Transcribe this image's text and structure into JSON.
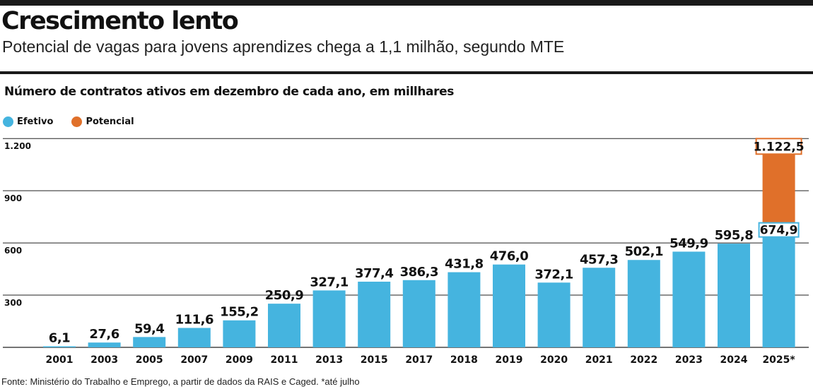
{
  "header": {
    "title": "Crescimento lento",
    "subtitle": "Potencial de vagas para jovens aprendizes chega a 1,1 milhão, segundo MTE"
  },
  "chart_heading": "Número de contratos ativos em dezembro de cada ano, em millhares",
  "legend": {
    "effective_label": "Efetivo",
    "potential_label": "Potencial"
  },
  "colors": {
    "effective": "#45b4df",
    "potential": "#e0702a",
    "grid": "#222222",
    "text": "#111111"
  },
  "chart_data": {
    "type": "bar",
    "categories": [
      "2001",
      "2003",
      "2005",
      "2007",
      "2009",
      "2011",
      "2013",
      "2015",
      "2017",
      "2018",
      "2019",
      "2020",
      "2021",
      "2022",
      "2023",
      "2024",
      "2025*"
    ],
    "series": [
      {
        "name": "Efetivo",
        "values": [
          6.1,
          27.6,
          59.4,
          111.6,
          155.2,
          250.9,
          327.1,
          377.4,
          386.3,
          431.8,
          476.0,
          372.1,
          457.3,
          502.1,
          549.9,
          595.8,
          674.9
        ],
        "labels": [
          "6,1",
          "27,6",
          "59,4",
          "111,6",
          "155,2",
          "250,9",
          "327,1",
          "377,4",
          "386,3",
          "431,8",
          "476,0",
          "372,1",
          "457,3",
          "502,1",
          "549,9",
          "595,8",
          "674,9"
        ]
      },
      {
        "name": "Potencial",
        "values": [
          null,
          null,
          null,
          null,
          null,
          null,
          null,
          null,
          null,
          null,
          null,
          null,
          null,
          null,
          null,
          null,
          1122.5
        ],
        "labels": [
          "",
          "",
          "",
          "",
          "",
          "",
          "",
          "",
          "",
          "",
          "",
          "",
          "",
          "",
          "",
          "",
          "1.122,5"
        ]
      }
    ],
    "yticks": [
      300,
      600,
      900,
      1200
    ],
    "ytick_labels": [
      "300",
      "600",
      "900",
      "1.200"
    ],
    "ylim": [
      0,
      1200
    ],
    "grid": true,
    "legend_position": "top-left"
  },
  "source": "Fonte: Ministério do Trabalho e Emprego, a partir de dados da RAIS e Caged. *até julho"
}
